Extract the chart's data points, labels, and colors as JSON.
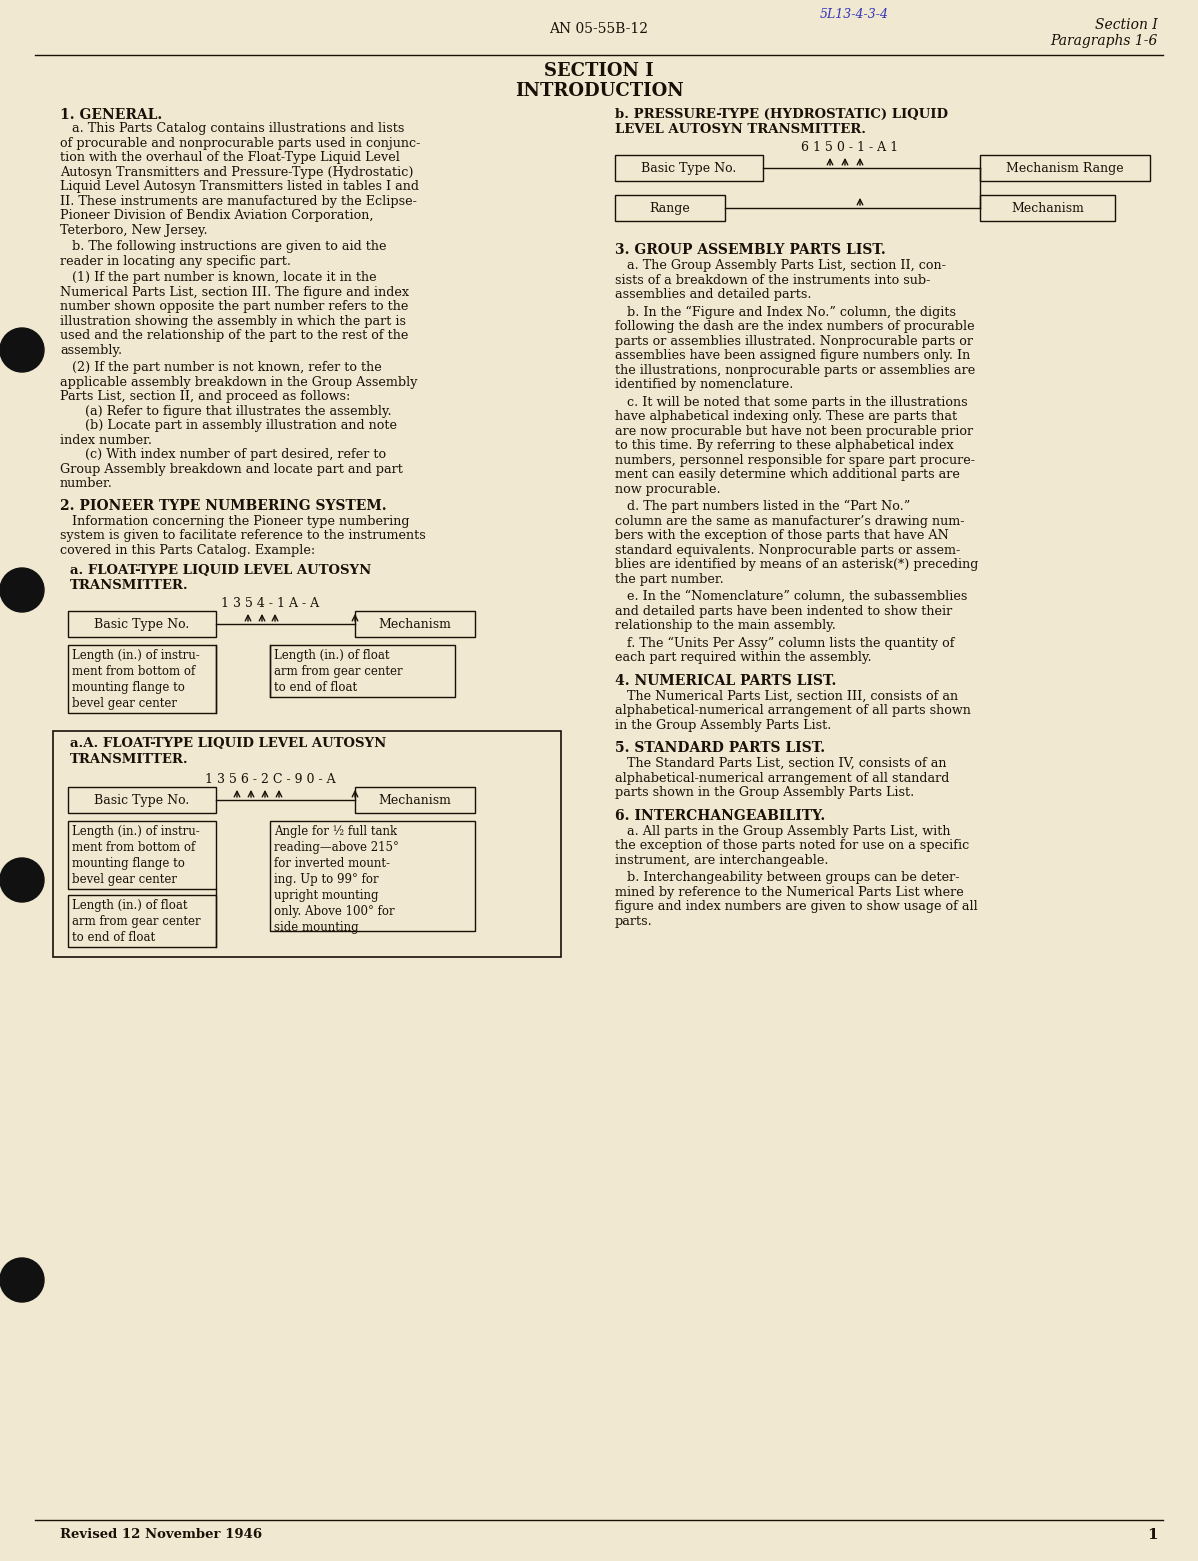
{
  "bg_color": "#f0e8d0",
  "page_number": "1",
  "top_center_text": "AN 05-55B-12",
  "top_right_line1": "Section I",
  "top_right_line2": "Paragraphs 1-6",
  "top_handwritten": "5L13-4-3-4",
  "section_title": "SECTION I",
  "section_subtitle": "INTRODUCTION",
  "section1_heading": "1. GENERAL.",
  "section2_heading": "2. PIONEER TYPE NUMBERING SYSTEM.",
  "section2a_heading": "a. FLOAT-TYPE LIQUID LEVEL AUTOSYN\nTRANSMITTER.",
  "diagram1_partno": "1 3 5 4 - 1 A - A",
  "diagram1_box1": "Basic Type No.",
  "diagram1_box2": "Mechanism",
  "section2aA_heading": "a.A. FLOAT-TYPE LIQUID LEVEL AUTOSYN\nTRANSMITTER.",
  "diagram2_partno": "1 3 5 6 - 2 C - 9 0 - A",
  "diagram2_box1": "Basic Type No.",
  "diagram2_box2": "Mechanism",
  "section2b_heading_line1": "b. PRESSURE-TYPE (HYDROSTATIC) LIQUID",
  "section2b_heading_line2": "LEVEL AUTOSYN TRANSMITTER.",
  "diagram3_partno": "6 1 5 0 - 1 - A 1",
  "diagram3_box1": "Basic Type No.",
  "diagram3_box2": "Mechanism Range",
  "diagram3_box3": "Range",
  "diagram3_box4": "Mechanism",
  "section3_heading": "3. GROUP ASSEMBLY PARTS LIST.",
  "section4_heading": "4. NUMERICAL PARTS LIST.",
  "section5_heading": "5. STANDARD PARTS LIST.",
  "section6_heading": "6. INTERCHANGEABILITY.",
  "footer_text": "Revised 12 November 1946"
}
